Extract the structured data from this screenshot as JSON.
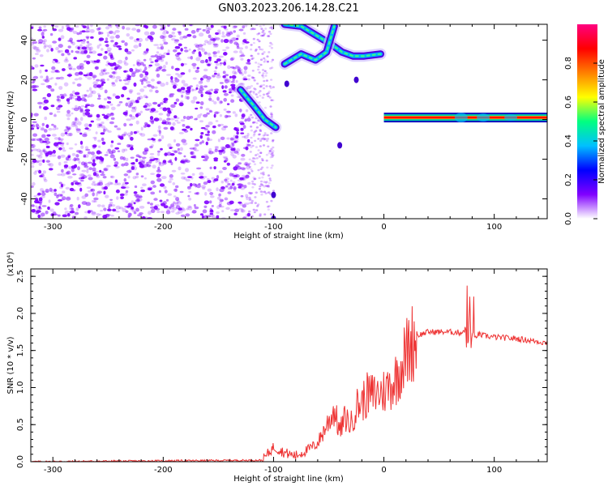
{
  "figure": {
    "title": "GN03.2023.206.14.28.C21"
  },
  "chart_data": [
    {
      "type": "heatmap",
      "xlabel": "Height of straight line (km)",
      "ylabel": "Frequency (Hz)",
      "xlim": [
        -320,
        148
      ],
      "ylim": [
        -50,
        48
      ],
      "xticks": [
        -300,
        -200,
        -100,
        0,
        100
      ],
      "yticks": [
        -40,
        -20,
        0,
        20,
        40
      ],
      "colorbar": {
        "label": "Normalized spectral amplitude",
        "range": [
          0,
          1
        ],
        "ticks": [
          "0.0",
          "0.2",
          "0.4",
          "0.6",
          "0.8"
        ],
        "colormap": [
          "#ffffff",
          "#8000ff",
          "#0000ff",
          "#00c0ff",
          "#00ff80",
          "#ffff00",
          "#ff8000",
          "#ff0000",
          "#ff0080"
        ]
      },
      "features": [
        {
          "name": "noise",
          "x_range": [
            -320,
            -122
          ],
          "y_range": [
            -50,
            48
          ],
          "amplitude": 0.12
        },
        {
          "name": "chirp-low",
          "x": [
            -130,
            -118,
            -108,
            -98
          ],
          "y": [
            15,
            7,
            0,
            -4
          ],
          "amplitude": 0.3
        },
        {
          "name": "chirp-upper-a",
          "x": [
            -90,
            -75,
            -60,
            -48,
            -38,
            -28,
            -18,
            -3
          ],
          "y": [
            48,
            47,
            42,
            38,
            34,
            32,
            32,
            33
          ],
          "amplitude": 0.3
        },
        {
          "name": "chirp-upper-b",
          "x": [
            -90,
            -75,
            -62,
            -52,
            -45
          ],
          "y": [
            28,
            33,
            30,
            34,
            47
          ],
          "amplitude": 0.25
        },
        {
          "name": "tone",
          "x_range": [
            0,
            148
          ],
          "y": 1,
          "amplitude": 0.8
        }
      ]
    },
    {
      "type": "line",
      "xlabel": "Height of straight line (km)",
      "ylabel": "SNR (10 * v/v)",
      "y_multiplier": "(x10⁴)",
      "xlim": [
        -320,
        148
      ],
      "ylim": [
        0,
        2.6
      ],
      "xticks": [
        -300,
        -200,
        -100,
        0,
        100
      ],
      "yticks": [
        "0.0",
        "0.5",
        "1.0",
        "1.5",
        "2.0",
        "2.5"
      ],
      "color": "#ee3333",
      "series": [
        {
          "x": [
            -320,
            -110,
            -100,
            -90,
            -80,
            -70,
            -60,
            -50,
            -45,
            -40,
            -35,
            -30,
            -25,
            -20,
            -15,
            -10,
            0,
            10,
            20,
            25,
            30,
            40,
            50,
            60,
            70,
            75,
            78,
            80,
            85,
            90,
            100,
            110,
            120,
            130,
            140,
            148
          ],
          "y": [
            0.0,
            0.02,
            0.2,
            0.12,
            0.08,
            0.15,
            0.25,
            0.55,
            0.7,
            0.4,
            0.6,
            0.5,
            0.75,
            0.8,
            0.9,
            0.9,
            0.95,
            1.1,
            1.45,
            1.6,
            1.7,
            1.75,
            1.75,
            1.75,
            1.74,
            1.8,
            1.78,
            1.6,
            1.72,
            1.7,
            1.68,
            1.67,
            1.66,
            1.64,
            1.62,
            1.6
          ]
        }
      ]
    }
  ]
}
